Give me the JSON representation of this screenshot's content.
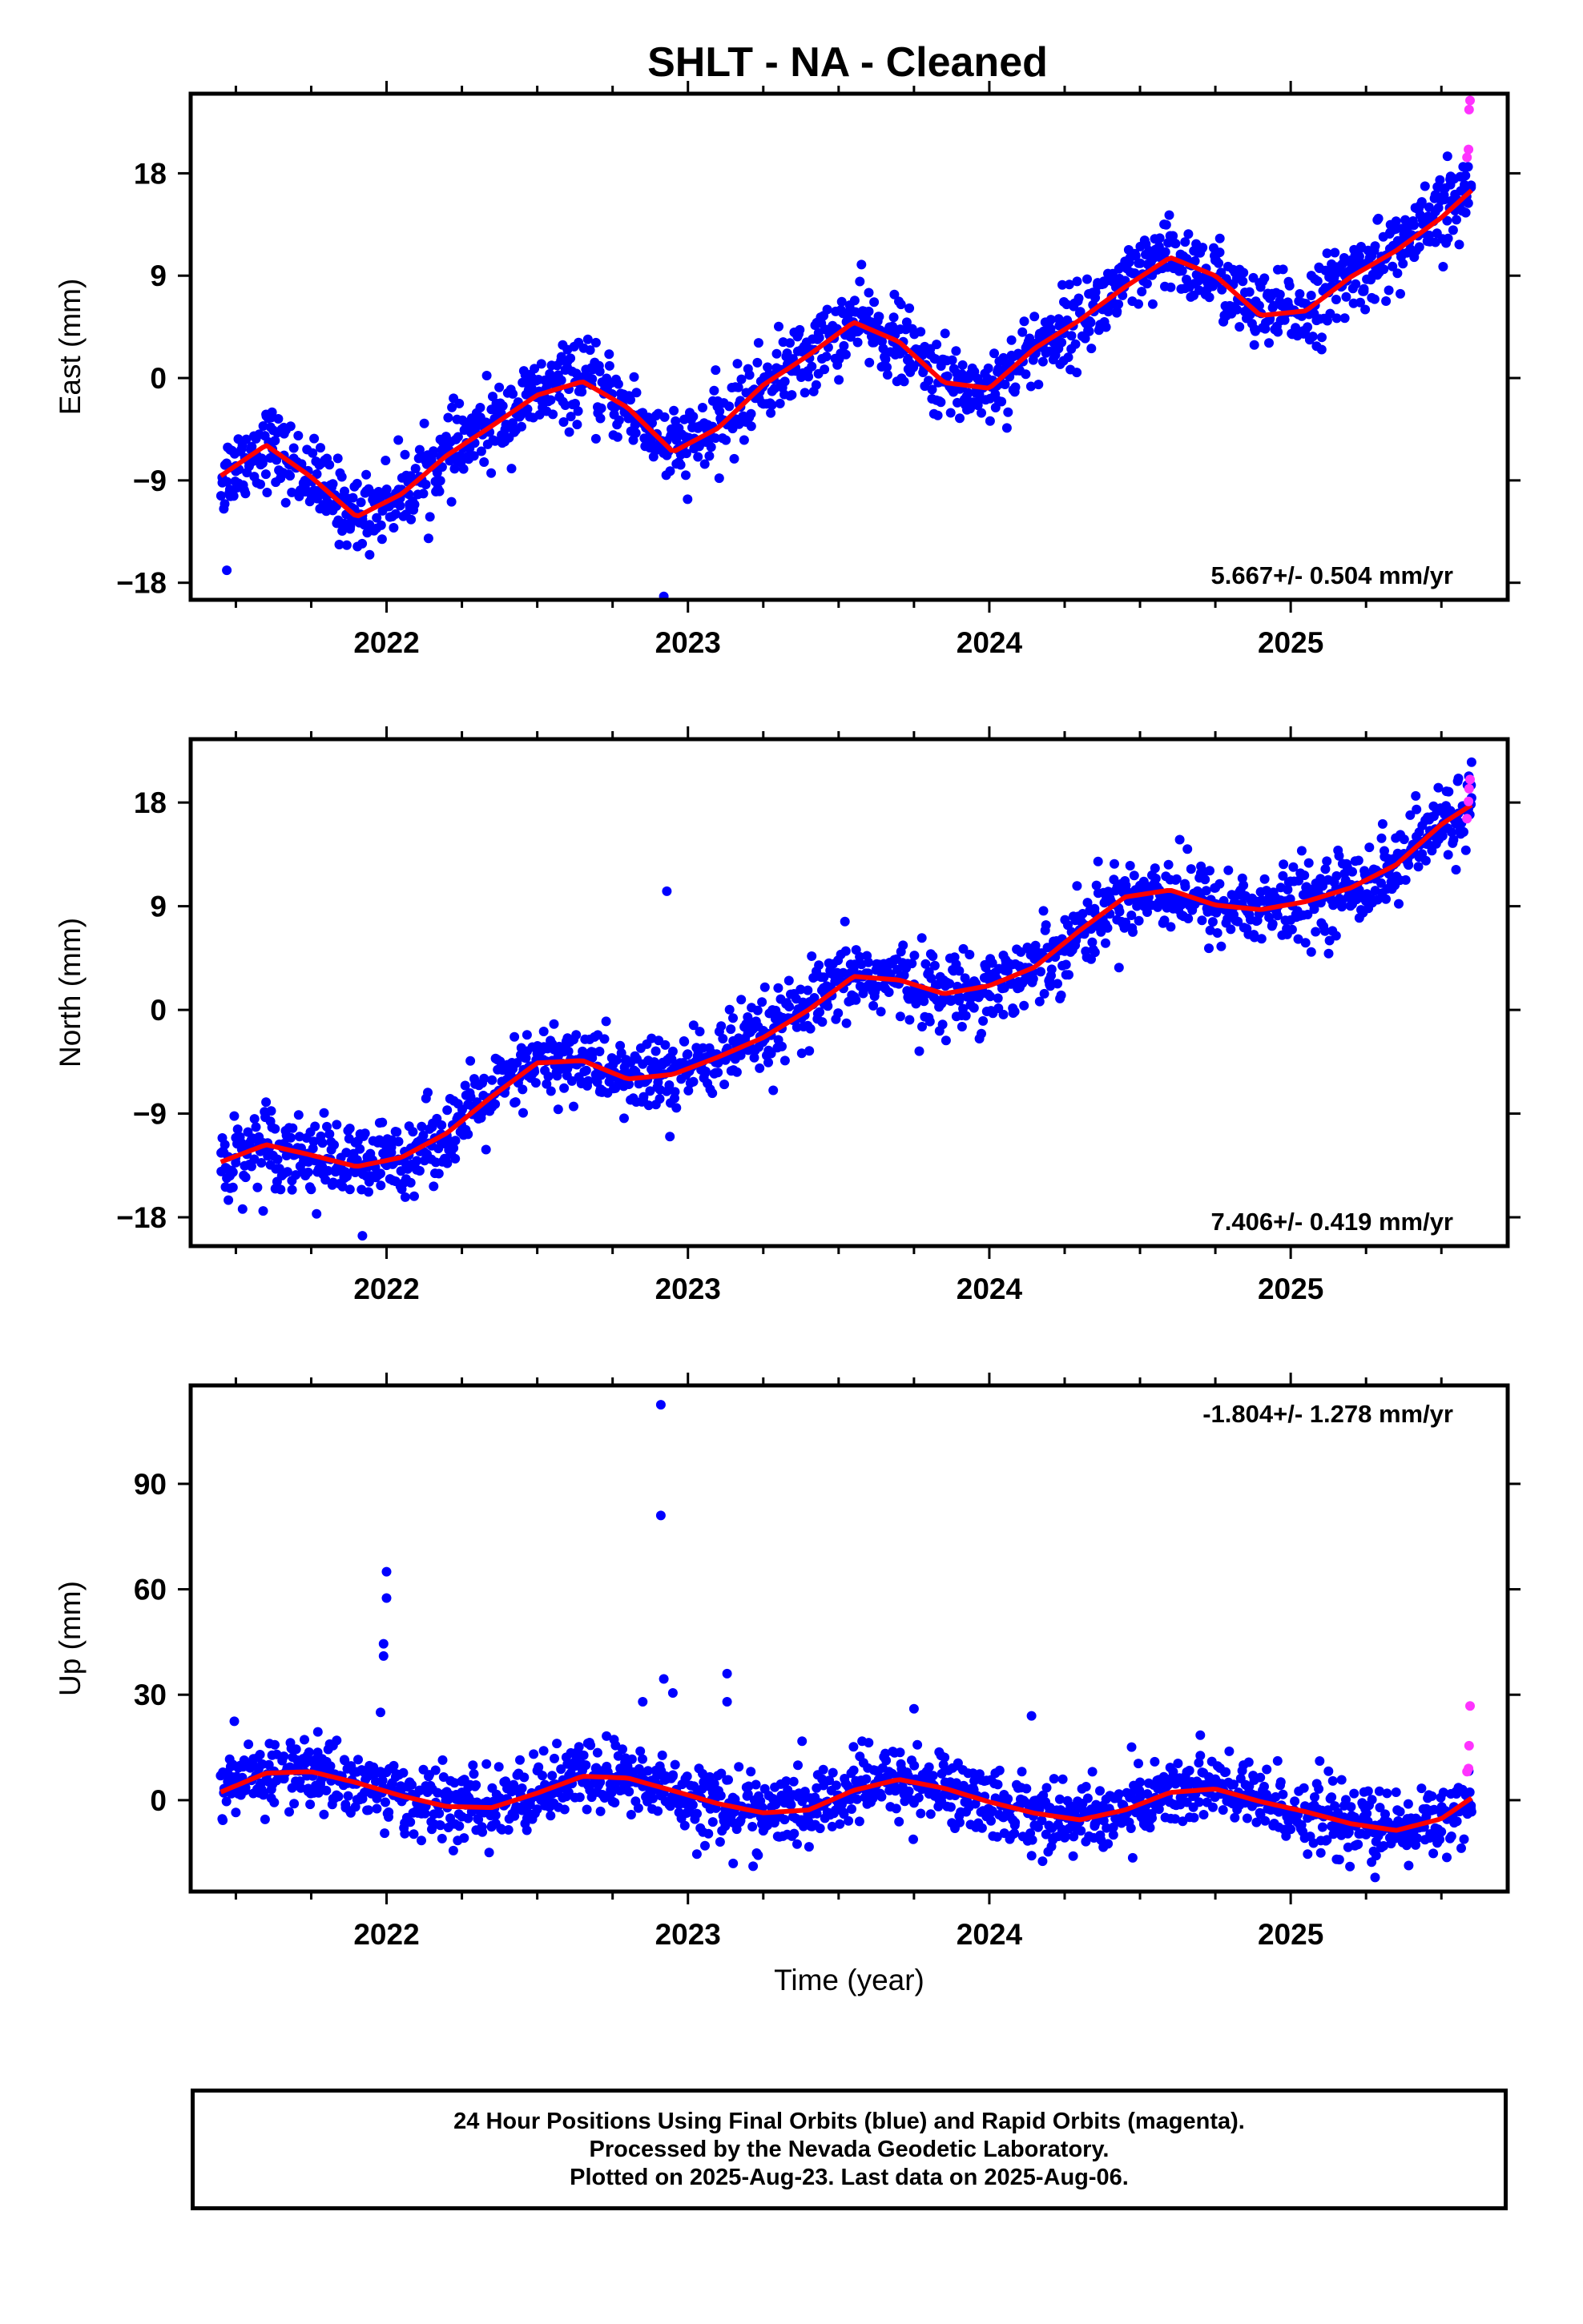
{
  "chart_data": [
    {
      "type": "scatter",
      "title": "SHLT  - NA - Cleaned",
      "ylabel": "East (mm)",
      "xlabel": "",
      "xlim": [
        2021.35,
        2025.72
      ],
      "ylim": [
        -19.5,
        25.0
      ],
      "xticks": [
        2022,
        2023,
        2024,
        2025
      ],
      "yticks": [
        -18,
        -9,
        0,
        9,
        18
      ],
      "rate_label": "5.667+/- 0.504 mm/yr",
      "rate_label_position": "bottom-right",
      "model_curve": {
        "x": [
          2021.45,
          2021.6,
          2021.75,
          2021.9,
          2022.05,
          2022.2,
          2022.35,
          2022.5,
          2022.65,
          2022.8,
          2022.95,
          2023.1,
          2023.25,
          2023.4,
          2023.55,
          2023.7,
          2023.85,
          2024.0,
          2024.15,
          2024.3,
          2024.45,
          2024.6,
          2024.75,
          2024.9,
          2025.05,
          2025.2,
          2025.35,
          2025.5,
          2025.6
        ],
        "y": [
          -8.6,
          -5.9,
          -8.7,
          -12.2,
          -10.2,
          -6.8,
          -4.2,
          -1.5,
          -0.3,
          -2.6,
          -6.5,
          -4.4,
          -0.6,
          2.0,
          4.9,
          3.2,
          -0.4,
          -0.9,
          2.6,
          5.1,
          8.0,
          10.6,
          9.0,
          5.5,
          5.9,
          8.9,
          11.2,
          14.1,
          16.5
        ]
      },
      "blue_points": {
        "x": [
          2021.46,
          2021.48,
          2021.5,
          2021.53,
          2021.56,
          2021.6,
          2021.63,
          2021.66,
          2021.7,
          2021.73,
          2021.77,
          2021.8,
          2021.84,
          2021.88,
          2021.92,
          2021.96,
          2022.0,
          2022.04,
          2022.08,
          2022.13,
          2022.18,
          2022.23,
          2022.28,
          2022.33,
          2022.38,
          2022.43,
          2022.48,
          2022.53,
          2022.58,
          2022.63,
          2022.68,
          2022.73,
          2022.78,
          2022.83,
          2022.88,
          2022.93,
          2022.97,
          2023.02,
          2023.07,
          2023.12,
          2023.17,
          2023.22,
          2023.28,
          2023.33,
          2023.38,
          2023.43,
          2023.48,
          2023.53,
          2023.58,
          2023.63,
          2023.68,
          2023.73,
          2023.78,
          2023.83,
          2023.88,
          2023.93,
          2023.98,
          2024.03,
          2024.08,
          2024.13,
          2024.18,
          2024.23,
          2024.28,
          2024.33,
          2024.38,
          2024.43,
          2024.48,
          2024.53,
          2024.58,
          2024.63,
          2024.68,
          2024.73,
          2024.78,
          2024.83,
          2024.88,
          2024.93,
          2024.98,
          2025.03,
          2025.08,
          2025.13,
          2025.18,
          2025.23,
          2025.28,
          2025.33,
          2025.38,
          2025.43,
          2025.48,
          2025.53,
          2025.58,
          2021.47,
          2022.92,
          2021.62,
          2022.6,
          2023.6,
          2024.6,
          2025.52
        ],
        "y": [
          -11.5,
          -9.8,
          -8.2,
          -7.0,
          -5.1,
          -3.2,
          -5.5,
          -6.8,
          -7.9,
          -9.4,
          -10.6,
          -11.7,
          -12.5,
          -13.0,
          -12.1,
          -11.0,
          -10.3,
          -9.8,
          -8.6,
          -7.3,
          -6.9,
          -5.4,
          -4.8,
          -3.9,
          -3.1,
          -2.5,
          -1.6,
          -0.9,
          -0.2,
          0.4,
          0.9,
          -0.6,
          -1.8,
          -3.7,
          -5.2,
          -6.8,
          -7.4,
          -6.2,
          -5.0,
          -3.8,
          -2.3,
          -1.0,
          0.1,
          1.2,
          2.3,
          3.4,
          4.6,
          5.4,
          5.9,
          5.0,
          3.2,
          1.7,
          0.5,
          -0.4,
          -0.9,
          -1.3,
          -0.5,
          0.8,
          1.9,
          3.2,
          4.1,
          5.2,
          6.3,
          7.4,
          8.5,
          9.6,
          10.8,
          11.2,
          10.6,
          9.4,
          8.3,
          7.1,
          5.5,
          4.5,
          4.3,
          5.1,
          6.2,
          7.4,
          8.7,
          9.2,
          9.0,
          10.2,
          11.6,
          12.8,
          13.9,
          15.2,
          16.1,
          17.0,
          17.8,
          -16.9,
          -19.2,
          -3.0,
          2.5,
          7.5,
          12.5,
          19.5
        ]
      },
      "magenta_points": {
        "x": [
          2025.585,
          2025.59,
          2025.592,
          2025.595
        ],
        "y": [
          19.4,
          20.1,
          23.6,
          24.4
        ]
      }
    },
    {
      "type": "scatter",
      "title": "",
      "ylabel": "North (mm)",
      "xlabel": "",
      "xlim": [
        2021.35,
        2025.72
      ],
      "ylim": [
        -20.5,
        23.5
      ],
      "xticks": [
        2022,
        2023,
        2024,
        2025
      ],
      "yticks": [
        -18,
        -9,
        0,
        9,
        18
      ],
      "rate_label": "7.406+/- 0.419 mm/yr",
      "rate_label_position": "bottom-right",
      "model_curve": {
        "x": [
          2021.45,
          2021.6,
          2021.75,
          2021.9,
          2022.05,
          2022.2,
          2022.35,
          2022.5,
          2022.65,
          2022.8,
          2022.95,
          2023.1,
          2023.25,
          2023.4,
          2023.55,
          2023.7,
          2023.85,
          2024.0,
          2024.15,
          2024.3,
          2024.45,
          2024.6,
          2024.75,
          2024.9,
          2025.05,
          2025.2,
          2025.35,
          2025.5,
          2025.6
        ],
        "y": [
          -13.2,
          -11.7,
          -12.6,
          -13.6,
          -12.8,
          -10.7,
          -7.5,
          -4.6,
          -4.4,
          -6.0,
          -5.6,
          -4.1,
          -2.4,
          0.0,
          2.9,
          2.6,
          1.4,
          2.1,
          3.7,
          6.9,
          9.8,
          10.4,
          9.1,
          8.7,
          9.4,
          10.6,
          12.6,
          16.1,
          17.8
        ]
      },
      "blue_points": {
        "x": [
          2021.46,
          2021.5,
          2021.54,
          2021.58,
          2021.62,
          2021.66,
          2021.7,
          2021.74,
          2021.78,
          2021.82,
          2021.86,
          2021.9,
          2021.94,
          2021.98,
          2022.02,
          2022.06,
          2022.1,
          2022.15,
          2022.2,
          2022.25,
          2022.3,
          2022.35,
          2022.4,
          2022.45,
          2022.5,
          2022.55,
          2022.6,
          2022.65,
          2022.7,
          2022.75,
          2022.8,
          2022.85,
          2022.9,
          2022.95,
          2023.0,
          2023.05,
          2023.1,
          2023.15,
          2023.2,
          2023.25,
          2023.3,
          2023.35,
          2023.4,
          2023.45,
          2023.5,
          2023.55,
          2023.6,
          2023.65,
          2023.7,
          2023.75,
          2023.8,
          2023.85,
          2023.9,
          2023.95,
          2024.0,
          2024.05,
          2024.1,
          2024.15,
          2024.2,
          2024.25,
          2024.3,
          2024.35,
          2024.4,
          2024.45,
          2024.5,
          2024.55,
          2024.6,
          2024.65,
          2024.7,
          2024.75,
          2024.8,
          2024.85,
          2024.9,
          2024.95,
          2025.0,
          2025.05,
          2025.1,
          2025.15,
          2025.2,
          2025.25,
          2025.3,
          2025.35,
          2025.4,
          2025.45,
          2025.5,
          2025.55,
          2025.6,
          2021.47,
          2021.92,
          2022.93,
          2022.94,
          2021.6,
          2025.6
        ],
        "y": [
          -12.4,
          -11.1,
          -10.6,
          -11.8,
          -10.2,
          -11.6,
          -12.4,
          -14.1,
          -13.5,
          -15.2,
          -14.6,
          -13.0,
          -15.8,
          -14.2,
          -13.4,
          -12.3,
          -13.1,
          -11.8,
          -10.9,
          -9.3,
          -8.0,
          -6.1,
          -4.9,
          -5.6,
          -3.8,
          -4.4,
          -5.1,
          -3.6,
          -4.9,
          -5.8,
          -6.3,
          -4.7,
          -5.2,
          -3.6,
          -4.8,
          -3.3,
          -4.6,
          -2.7,
          -3.5,
          -1.8,
          -2.6,
          -0.9,
          0.4,
          1.9,
          2.6,
          3.6,
          2.1,
          4.0,
          2.4,
          1.4,
          3.3,
          1.2,
          0.8,
          2.5,
          3.1,
          1.9,
          3.8,
          4.4,
          2.2,
          5.1,
          6.6,
          8.4,
          9.7,
          11.2,
          10.8,
          12.3,
          11.3,
          10.7,
          9.5,
          10.6,
          8.2,
          9.9,
          8.5,
          9.2,
          7.8,
          10.1,
          9.3,
          10.5,
          9.9,
          11.3,
          11.0,
          12.8,
          13.5,
          14.4,
          15.9,
          16.7,
          18.4,
          -14.6,
          -19.6,
          10.3,
          -11.0,
          -8.0,
          21.5
        ]
      },
      "magenta_points": {
        "x": [
          2025.585,
          2025.59,
          2025.592,
          2025.595
        ],
        "y": [
          16.6,
          18.1,
          19.2,
          20.0
        ]
      }
    },
    {
      "type": "scatter",
      "title": "",
      "ylabel": "Up (mm)",
      "xlabel": "Time (year)",
      "xlim": [
        2021.35,
        2025.72
      ],
      "ylim": [
        -26.0,
        118.0
      ],
      "xticks": [
        2022,
        2023,
        2024,
        2025
      ],
      "yticks": [
        0,
        30,
        60,
        90
      ],
      "rate_label": "-1.804+/- 1.278 mm/yr",
      "rate_label_position": "top-right",
      "model_curve": {
        "x": [
          2021.45,
          2021.6,
          2021.75,
          2021.9,
          2022.05,
          2022.2,
          2022.35,
          2022.5,
          2022.65,
          2022.8,
          2022.95,
          2023.1,
          2023.25,
          2023.4,
          2023.55,
          2023.7,
          2023.85,
          2024.0,
          2024.15,
          2024.3,
          2024.45,
          2024.6,
          2024.75,
          2024.9,
          2025.05,
          2025.2,
          2025.35,
          2025.5,
          2025.6
        ],
        "y": [
          2.3,
          7.7,
          8.1,
          5.0,
          1.2,
          -1.8,
          -2.1,
          2.0,
          6.8,
          6.3,
          2.7,
          -1.0,
          -3.6,
          -2.8,
          2.8,
          5.9,
          3.4,
          -0.5,
          -3.7,
          -5.6,
          -2.8,
          2.2,
          3.2,
          -0.4,
          -3.3,
          -6.7,
          -8.6,
          -5.3,
          0.6
        ]
      },
      "blue_points": {
        "x": [
          2021.46,
          2021.5,
          2021.54,
          2021.58,
          2021.62,
          2021.66,
          2021.7,
          2021.74,
          2021.78,
          2021.82,
          2021.86,
          2021.9,
          2021.94,
          2021.98,
          2022.02,
          2022.06,
          2022.1,
          2022.15,
          2022.2,
          2022.25,
          2022.3,
          2022.35,
          2022.4,
          2022.45,
          2022.5,
          2022.55,
          2022.6,
          2022.65,
          2022.7,
          2022.75,
          2022.8,
          2022.85,
          2022.9,
          2022.95,
          2023.0,
          2023.05,
          2023.1,
          2023.15,
          2023.2,
          2023.25,
          2023.3,
          2023.35,
          2023.4,
          2023.45,
          2023.5,
          2023.55,
          2023.6,
          2023.65,
          2023.7,
          2023.75,
          2023.8,
          2023.85,
          2023.9,
          2023.95,
          2024.0,
          2024.05,
          2024.1,
          2024.15,
          2024.2,
          2024.25,
          2024.3,
          2024.35,
          2024.4,
          2024.45,
          2024.5,
          2024.55,
          2024.6,
          2024.65,
          2024.7,
          2024.75,
          2024.8,
          2024.85,
          2024.9,
          2024.95,
          2025.0,
          2025.05,
          2025.1,
          2025.15,
          2025.2,
          2025.25,
          2025.3,
          2025.35,
          2025.4,
          2025.45,
          2025.5,
          2025.55,
          2025.6,
          2021.98,
          2021.99,
          2022.0,
          2022.0,
          2021.99,
          2022.91,
          2022.91,
          2022.92,
          2022.95,
          2023.13,
          2023.13,
          2024.14,
          2022.85,
          2023.75,
          2024.7,
          2023.15,
          2025.28
        ],
        "y": [
          2.1,
          -3.5,
          9.6,
          4.2,
          12.8,
          6.1,
          14.5,
          3.3,
          9.7,
          -1.2,
          11.5,
          4.6,
          -2.8,
          8.1,
          1.7,
          -6.5,
          -0.9,
          -8.3,
          2.4,
          -4.7,
          -0.6,
          -7.2,
          3.3,
          -2.9,
          8.4,
          1.8,
          10.3,
          5.1,
          13.5,
          -0.4,
          9.6,
          3.9,
          -3.1,
          6.8,
          -1.5,
          -9.1,
          1.2,
          -6.4,
          -2.3,
          -8.7,
          -4.1,
          1.5,
          -6.0,
          4.2,
          -1.1,
          8.5,
          3.0,
          12.3,
          6.2,
          -0.8,
          9.4,
          1.6,
          -4.5,
          5.5,
          -2.6,
          -9.4,
          -1.4,
          -7.1,
          -3.5,
          -10.7,
          -2.2,
          -6.8,
          1.3,
          -4.9,
          5.1,
          0.7,
          9.3,
          2.9,
          12.7,
          6.0,
          -0.6,
          4.4,
          -4.1,
          0.9,
          -8.3,
          -2.4,
          -11.5,
          -5.6,
          -1.9,
          -9.8,
          -13.5,
          -7.4,
          -11.2,
          -4.6,
          -9.0,
          1.8,
          -3.3,
          25.0,
          44.5,
          57.5,
          65.0,
          41.0,
          112.5,
          81.0,
          34.5,
          30.5,
          36.0,
          28.0,
          24.0,
          28.0,
          26.0,
          18.5,
          -18.0,
          -22.0
        ]
      },
      "magenta_points": {
        "x": [
          2025.585,
          2025.59,
          2025.592,
          2025.595
        ],
        "y": [
          8.1,
          9.0,
          15.5,
          26.8
        ]
      }
    }
  ],
  "colors": {
    "blue": "#0000ff",
    "magenta": "#ff33ff",
    "model": "#ff0000"
  },
  "footer": {
    "line1": "24 Hour Positions Using Final Orbits (blue) and Rapid Orbits (magenta).",
    "line2": "Processed by the Nevada Geodetic Laboratory.",
    "line3": "Plotted on 2025-Aug-23. Last data on 2025-Aug-06."
  }
}
